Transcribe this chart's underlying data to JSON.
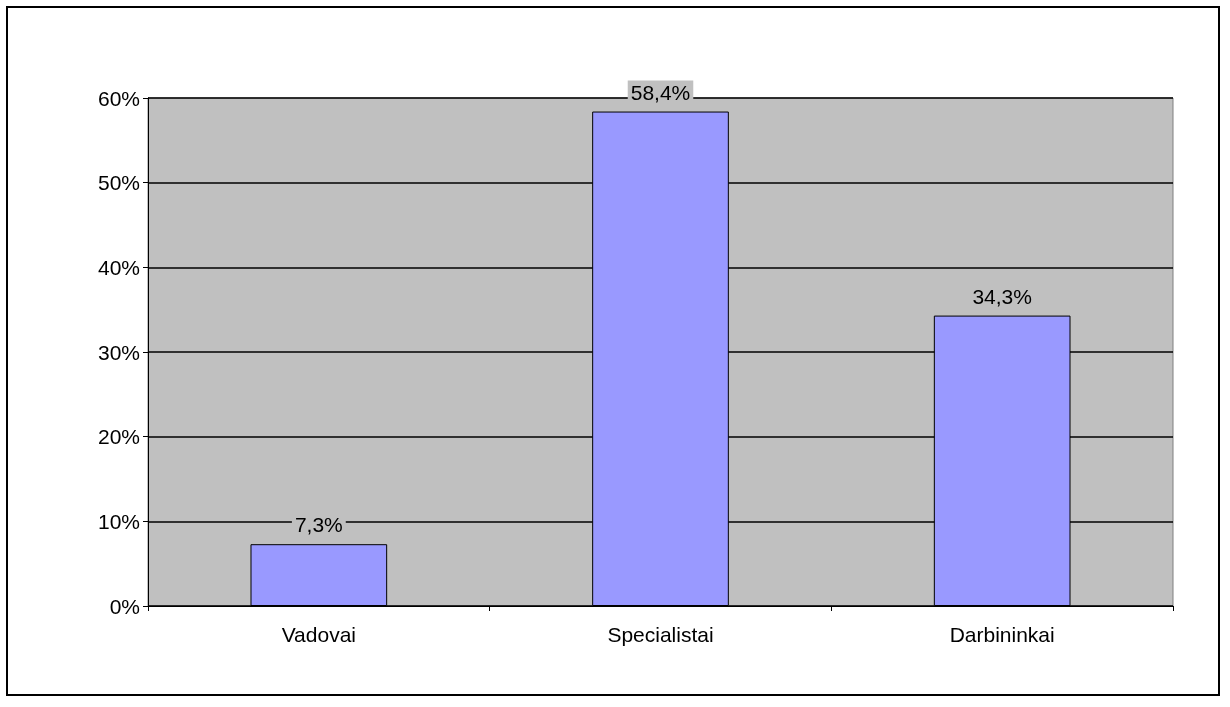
{
  "chart_data": {
    "type": "bar",
    "categories": [
      "Vadovai",
      "Specialistai",
      "Darbininkai"
    ],
    "values": [
      7.3,
      58.4,
      34.3
    ],
    "value_labels": [
      "7,3%",
      "58,4%",
      "34,3%"
    ],
    "color": "#9999ff",
    "ylim": [
      0,
      60
    ],
    "yticks": [
      {
        "value": 0,
        "label": "0%"
      },
      {
        "value": 10,
        "label": "10%"
      },
      {
        "value": 20,
        "label": "20%"
      },
      {
        "value": 30,
        "label": "30%"
      },
      {
        "value": 40,
        "label": "40%"
      },
      {
        "value": 50,
        "label": "50%"
      },
      {
        "value": 60,
        "label": "60%"
      }
    ],
    "grid": "y"
  }
}
